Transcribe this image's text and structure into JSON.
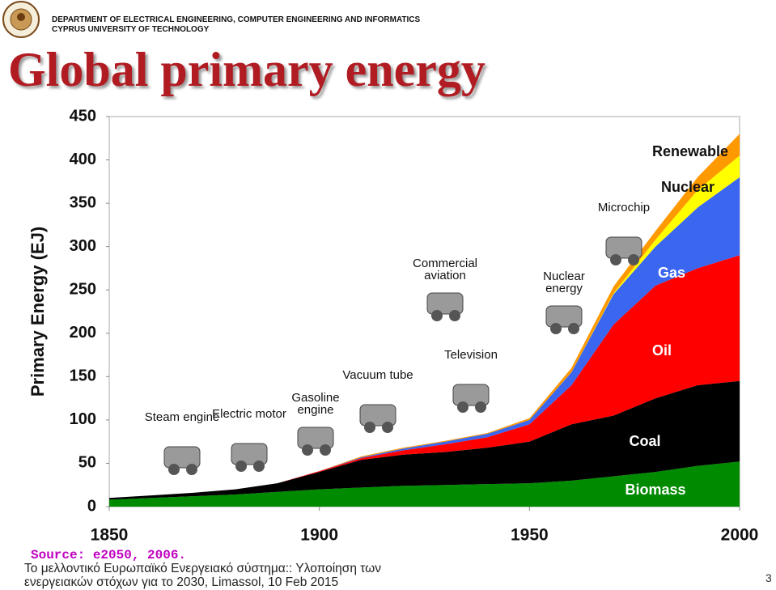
{
  "header": {
    "department": "DEPARTMENT OF ELECTRICAL ENGINEERING, COMPUTER ENGINEERING AND INFORMATICS",
    "university": "CYPRUS UNIVERSITY OF TECHNOLOGY"
  },
  "title": "Global primary energy",
  "chart_data": {
    "type": "stacked_area",
    "y_label": "Primary Energy  (EJ)",
    "x": [
      1850,
      1860,
      1870,
      1880,
      1890,
      1900,
      1910,
      1920,
      1930,
      1940,
      1950,
      1960,
      1970,
      1980,
      1990,
      2000
    ],
    "xlim": [
      1850,
      2000
    ],
    "xticks": [
      1850,
      1900,
      1950,
      2000
    ],
    "ylim": [
      0,
      450
    ],
    "yticks": [
      0,
      50,
      100,
      150,
      200,
      250,
      300,
      350,
      400,
      450
    ],
    "series": [
      {
        "name": "Biomass",
        "color": "#008a00",
        "values": [
          8,
          10,
          12,
          14,
          17,
          20,
          22,
          24,
          25,
          26,
          27,
          30,
          35,
          40,
          47,
          52
        ]
      },
      {
        "name": "Coal",
        "color": "#000000",
        "values": [
          2,
          3,
          4,
          6,
          10,
          20,
          32,
          36,
          38,
          42,
          48,
          65,
          70,
          85,
          93,
          93
        ]
      },
      {
        "name": "Oil",
        "color": "#ff0000",
        "values": [
          0,
          0,
          0,
          0,
          0,
          1,
          2,
          5,
          9,
          12,
          20,
          45,
          105,
          130,
          135,
          145
        ]
      },
      {
        "name": "Gas",
        "color": "#3a66f0",
        "values": [
          0,
          0,
          0,
          0,
          0,
          0,
          1,
          2,
          3,
          4,
          5,
          15,
          35,
          45,
          70,
          90
        ]
      },
      {
        "name": "Nuclear",
        "color": "#ffff00",
        "values": [
          0,
          0,
          0,
          0,
          0,
          0,
          0,
          0,
          0,
          0,
          0,
          0,
          1,
          8,
          20,
          25
        ]
      },
      {
        "name": "Renewable",
        "color": "#ff9900",
        "values": [
          0,
          0,
          0,
          0,
          0,
          0,
          1,
          1,
          1,
          1,
          2,
          5,
          8,
          10,
          15,
          25
        ]
      }
    ],
    "annotations": [
      "Steam engine",
      "Electric motor",
      "Gasoline engine",
      "Vacuum tube",
      "Commercial aviation",
      "Television",
      "Nuclear energy",
      "Microchip"
    ]
  },
  "source": "Source: e2050, 2006.",
  "footer": "Το μελλοντικό Ευρωπαϊκό Ενεργειακό σύστημα:: Υλοποίηση των ενεργειακών στόχων για το 2030, Limassol, 10 Feb 2015",
  "page_number": "3"
}
